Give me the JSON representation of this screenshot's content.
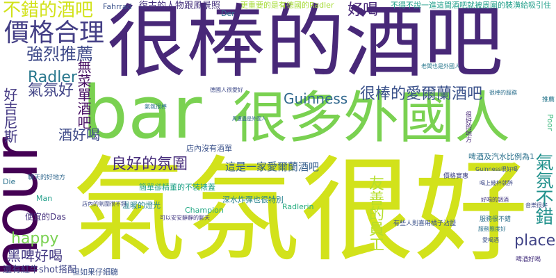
{
  "words": [
    {
      "text": "很棒的酒吧",
      "color": "#482878"
    },
    {
      "text": "bar",
      "color": "#7ad151"
    },
    {
      "text": "hour",
      "color": "#440154"
    },
    {
      "text": "氣氛很好",
      "color": "#d2e21b"
    },
    {
      "text": "很多外國人",
      "color": "#7ad151"
    },
    {
      "text": "價格合理",
      "color": "#433e85"
    },
    {
      "text": "不錯的酒吧",
      "color": "#d2e21b"
    },
    {
      "text": "強烈推薦",
      "color": "#3e4a89"
    },
    {
      "text": "好喝",
      "color": "#482878"
    },
    {
      "text": "Radler",
      "color": "#2a788e"
    },
    {
      "text": "氣氛好",
      "color": "#414487"
    },
    {
      "text": "Guinness",
      "color": "#31688e"
    },
    {
      "text": "很棒的愛爾蘭酒吧",
      "color": "#3b528b"
    },
    {
      "text": "無菜單酒吧",
      "color": "#471063"
    },
    {
      "text": "好吉尼斯",
      "color": "#443983"
    },
    {
      "text": "酒好喝",
      "color": "#3e4a89"
    },
    {
      "text": "良好的氛圍",
      "color": "#472d7b"
    },
    {
      "text": "這是一家愛爾蘭酒吧",
      "color": "#355f8d"
    },
    {
      "text": "友善的員工",
      "color": "#b5de2b"
    },
    {
      "text": "氣氛不錯",
      "color": "#21918c"
    },
    {
      "text": "happy",
      "color": "#7ad151"
    },
    {
      "text": "黑啤好喝",
      "color": "#443983"
    },
    {
      "text": "place",
      "color": "#414487"
    },
    {
      "text": "Fahrrad",
      "color": "#3b528b"
    },
    {
      "text": "復古的人物跟風景照",
      "color": "#46327e"
    },
    {
      "text": "Der",
      "color": "#2c728e"
    },
    {
      "text": "更重要的是有德國的Radler",
      "color": "#a5db36"
    },
    {
      "text": "不得不說一進這間酒吧就被周圍的裝潢給吸引住",
      "color": "#1f9e89"
    },
    {
      "text": "Champion",
      "color": "#22a884"
    },
    {
      "text": "Radlerin",
      "color": "#27ad81"
    },
    {
      "text": "溫暖的燈光",
      "color": "#25848e"
    },
    {
      "text": "深水炸彈也很特別",
      "color": "#26828e"
    },
    {
      "text": "簡單卻精董的不裝裱蓋",
      "color": "#1fa187"
    },
    {
      "text": "店內沒有酒單",
      "color": "#3b528b"
    },
    {
      "text": "Poor",
      "color": "#35b779"
    },
    {
      "text": "Man",
      "color": "#1f9e89"
    },
    {
      "text": "Die",
      "color": "#2c728e"
    },
    {
      "text": "還有紅牛shot搭配",
      "color": "#404688"
    },
    {
      "text": "但如果仔細聽",
      "color": "#3b528b"
    },
    {
      "text": "啤酒及汽水比例為1",
      "color": "#2c728e"
    },
    {
      "text": "店內的氛圍很不錯",
      "color": "#3e4a89"
    },
    {
      "text": "可以安安靜靜的聊天",
      "color": "#443a83"
    },
    {
      "text": "啤酒好喝",
      "color": "#46327e"
    },
    {
      "text": "服務很不錯",
      "color": "#2d708e"
    },
    {
      "text": "有些人則喜用橘子沾鹽",
      "color": "#3b528b"
    },
    {
      "text": "老闆也是外國人",
      "color": "#2a788e"
    },
    {
      "text": "德國人很愛好",
      "color": "#3e4a89"
    },
    {
      "text": "周遭盡是外國人",
      "color": "#31688e"
    },
    {
      "text": "很棒的服務",
      "color": "#2d708e"
    },
    {
      "text": "很好的地方",
      "color": "#482878"
    },
    {
      "text": "價格實惠",
      "color": "#414487"
    },
    {
      "text": "好喝的調酒",
      "color": "#443983"
    },
    {
      "text": "喝上幾杯就醉",
      "color": "#3e4a89"
    },
    {
      "text": "愛喝酒",
      "color": "#3b528b"
    },
    {
      "text": "服務態度好",
      "color": "#2c728e"
    },
    {
      "text": "音樂很好",
      "color": "#3e4a89"
    },
    {
      "text": "便宜的Das",
      "color": "#46327e"
    },
    {
      "text": "聊天的好地方",
      "color": "#31688e"
    },
    {
      "text": "氣氛很棒",
      "color": "#2d708e"
    },
    {
      "text": "推薦",
      "color": "#2a788e"
    },
    {
      "text": "Guinness很好喝",
      "color": "#3b528b"
    }
  ]
}
